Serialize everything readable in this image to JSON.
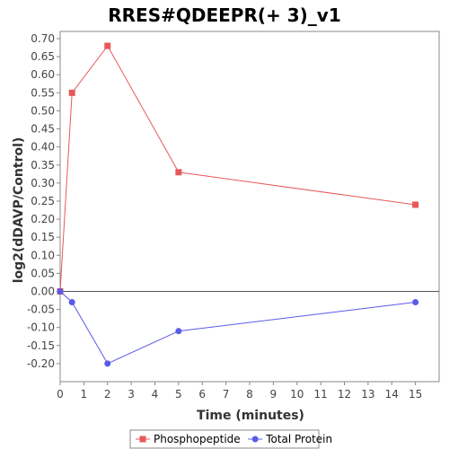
{
  "chart_data": {
    "type": "line",
    "title": "RRES#QDEEPR(+ 3)_v1",
    "xlabel": "Time (minutes)",
    "ylabel": "log2(dDAVP/Control)",
    "xlim": [
      0,
      16
    ],
    "ylim": [
      -0.25,
      0.72
    ],
    "x_ticks": [
      0,
      1,
      2,
      3,
      4,
      5,
      6,
      7,
      8,
      9,
      10,
      11,
      12,
      13,
      14,
      15
    ],
    "y_ticks": [
      0.7,
      0.65,
      0.6,
      0.55,
      0.5,
      0.45,
      0.4,
      0.35,
      0.3,
      0.25,
      0.2,
      0.15,
      0.1,
      0.05,
      0.0,
      -0.05,
      -0.1,
      -0.15,
      -0.2
    ],
    "grid": false,
    "legend_position": "bottom",
    "series": [
      {
        "name": "Phosphopeptide",
        "color": "#e8585a",
        "marker": "square",
        "x": [
          0,
          0.5,
          2,
          5,
          15
        ],
        "y": [
          0.0,
          0.55,
          0.68,
          0.33,
          0.24
        ]
      },
      {
        "name": "Total Protein",
        "color": "#5a5ae8",
        "marker": "circle",
        "x": [
          0,
          0.5,
          2,
          5,
          15
        ],
        "y": [
          0.0,
          -0.03,
          -0.2,
          -0.11,
          -0.03
        ]
      }
    ]
  }
}
